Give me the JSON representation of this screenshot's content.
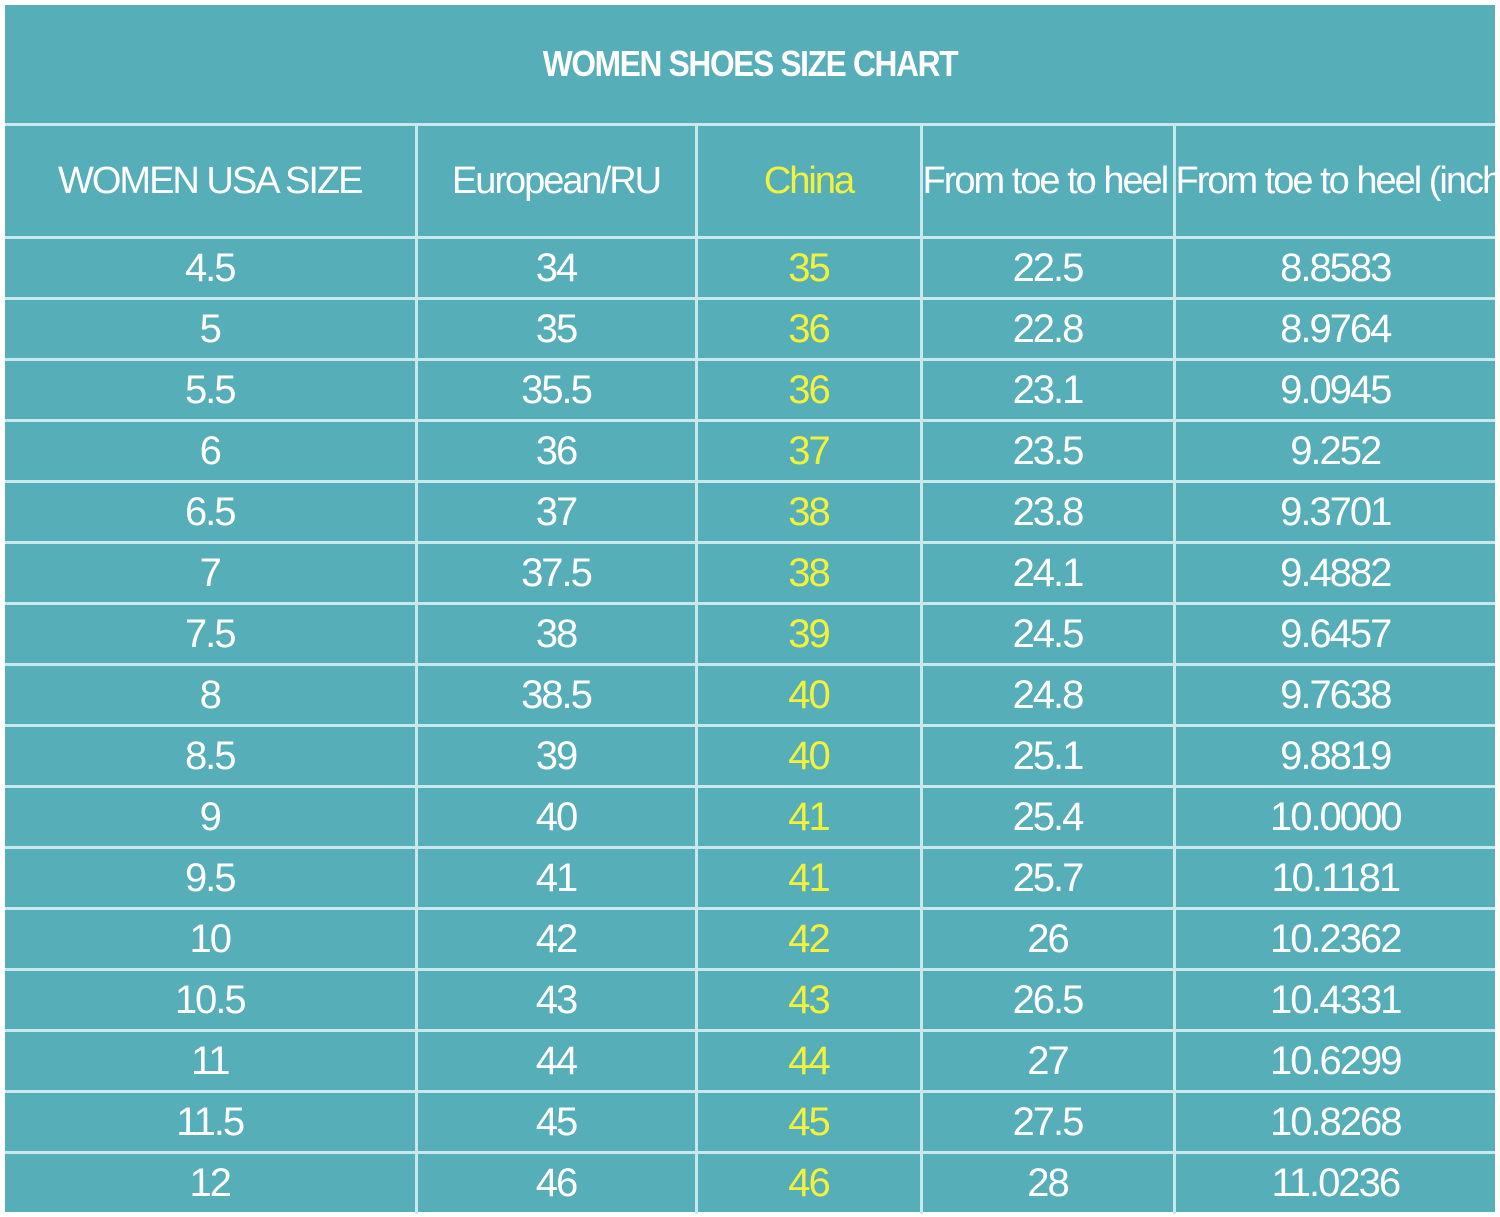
{
  "title": "WOMEN SHOES SIZE CHART",
  "headers": [
    "WOMEN USA SIZE",
    "European/RU",
    "China",
    "From toe to heel (cm)",
    "From toe to heel (inch)"
  ],
  "colors": {
    "background": "#56aeb8",
    "grid": "#c8e8ec",
    "text": "#ffffff",
    "china_highlight": "#f2f23c"
  },
  "rows": [
    [
      "4.5",
      "34",
      "35",
      "22.5",
      "8.8583"
    ],
    [
      "5",
      "35",
      "36",
      "22.8",
      "8.9764"
    ],
    [
      "5.5",
      "35.5",
      "36",
      "23.1",
      "9.0945"
    ],
    [
      "6",
      "36",
      "37",
      "23.5",
      "9.252"
    ],
    [
      "6.5",
      "37",
      "38",
      "23.8",
      "9.3701"
    ],
    [
      "7",
      "37.5",
      "38",
      "24.1",
      "9.4882"
    ],
    [
      "7.5",
      "38",
      "39",
      "24.5",
      "9.6457"
    ],
    [
      "8",
      "38.5",
      "40",
      "24.8",
      "9.7638"
    ],
    [
      "8.5",
      "39",
      "40",
      "25.1",
      "9.8819"
    ],
    [
      "9",
      "40",
      "41",
      "25.4",
      "10.0000"
    ],
    [
      "9.5",
      "41",
      "41",
      "25.7",
      "10.1181"
    ],
    [
      "10",
      "42",
      "42",
      "26",
      "10.2362"
    ],
    [
      "10.5",
      "43",
      "43",
      "26.5",
      "10.4331"
    ],
    [
      "11",
      "44",
      "44",
      "27",
      "10.6299"
    ],
    [
      "11.5",
      "45",
      "45",
      "27.5",
      "10.8268"
    ],
    [
      "12",
      "46",
      "46",
      "28",
      "11.0236"
    ]
  ]
}
